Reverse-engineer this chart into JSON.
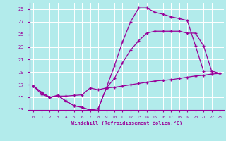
{
  "xlabel": "Windchill (Refroidissement éolien,°C)",
  "background_color": "#b2ebeb",
  "line_color": "#990099",
  "grid_color": "#ffffff",
  "xlim": [
    -0.5,
    23.5
  ],
  "ylim": [
    13,
    30
  ],
  "yticks": [
    13,
    15,
    17,
    19,
    21,
    23,
    25,
    27,
    29
  ],
  "xticks": [
    0,
    1,
    2,
    3,
    4,
    5,
    6,
    7,
    8,
    9,
    10,
    11,
    12,
    13,
    14,
    15,
    16,
    17,
    18,
    19,
    20,
    21,
    22,
    23
  ],
  "line1_x": [
    0,
    1,
    2,
    3,
    4,
    5,
    6,
    7,
    8,
    9,
    10,
    11,
    12,
    13,
    14,
    15,
    16,
    17,
    18,
    19,
    20,
    21,
    22
  ],
  "line1_y": [
    16.8,
    15.8,
    15.0,
    15.3,
    14.4,
    13.7,
    13.4,
    13.0,
    13.2,
    16.5,
    20.0,
    23.8,
    27.0,
    29.2,
    29.2,
    28.5,
    28.2,
    27.8,
    27.5,
    27.2,
    23.2,
    19.2,
    19.2
  ],
  "line2_x": [
    0,
    1,
    2,
    3,
    4,
    5,
    6,
    7,
    8,
    9,
    10,
    11,
    12,
    13,
    14,
    15,
    16,
    17,
    18,
    19,
    20,
    21,
    22,
    23
  ],
  "line2_y": [
    16.8,
    15.8,
    15.0,
    15.3,
    14.4,
    13.7,
    13.4,
    13.0,
    13.2,
    16.5,
    18.0,
    20.5,
    22.5,
    24.0,
    25.2,
    25.5,
    25.5,
    25.5,
    25.5,
    25.2,
    25.2,
    23.2,
    19.2,
    18.8
  ],
  "line3_x": [
    0,
    1,
    2,
    3,
    4,
    5,
    6,
    7,
    8,
    9,
    10,
    11,
    12,
    13,
    14,
    15,
    16,
    17,
    18,
    19,
    20,
    21,
    22,
    23
  ],
  "line3_y": [
    16.8,
    15.5,
    15.0,
    15.2,
    15.2,
    15.3,
    15.4,
    16.5,
    16.2,
    16.5,
    16.6,
    16.8,
    17.0,
    17.2,
    17.4,
    17.6,
    17.7,
    17.8,
    18.0,
    18.2,
    18.4,
    18.5,
    18.7,
    18.8
  ]
}
